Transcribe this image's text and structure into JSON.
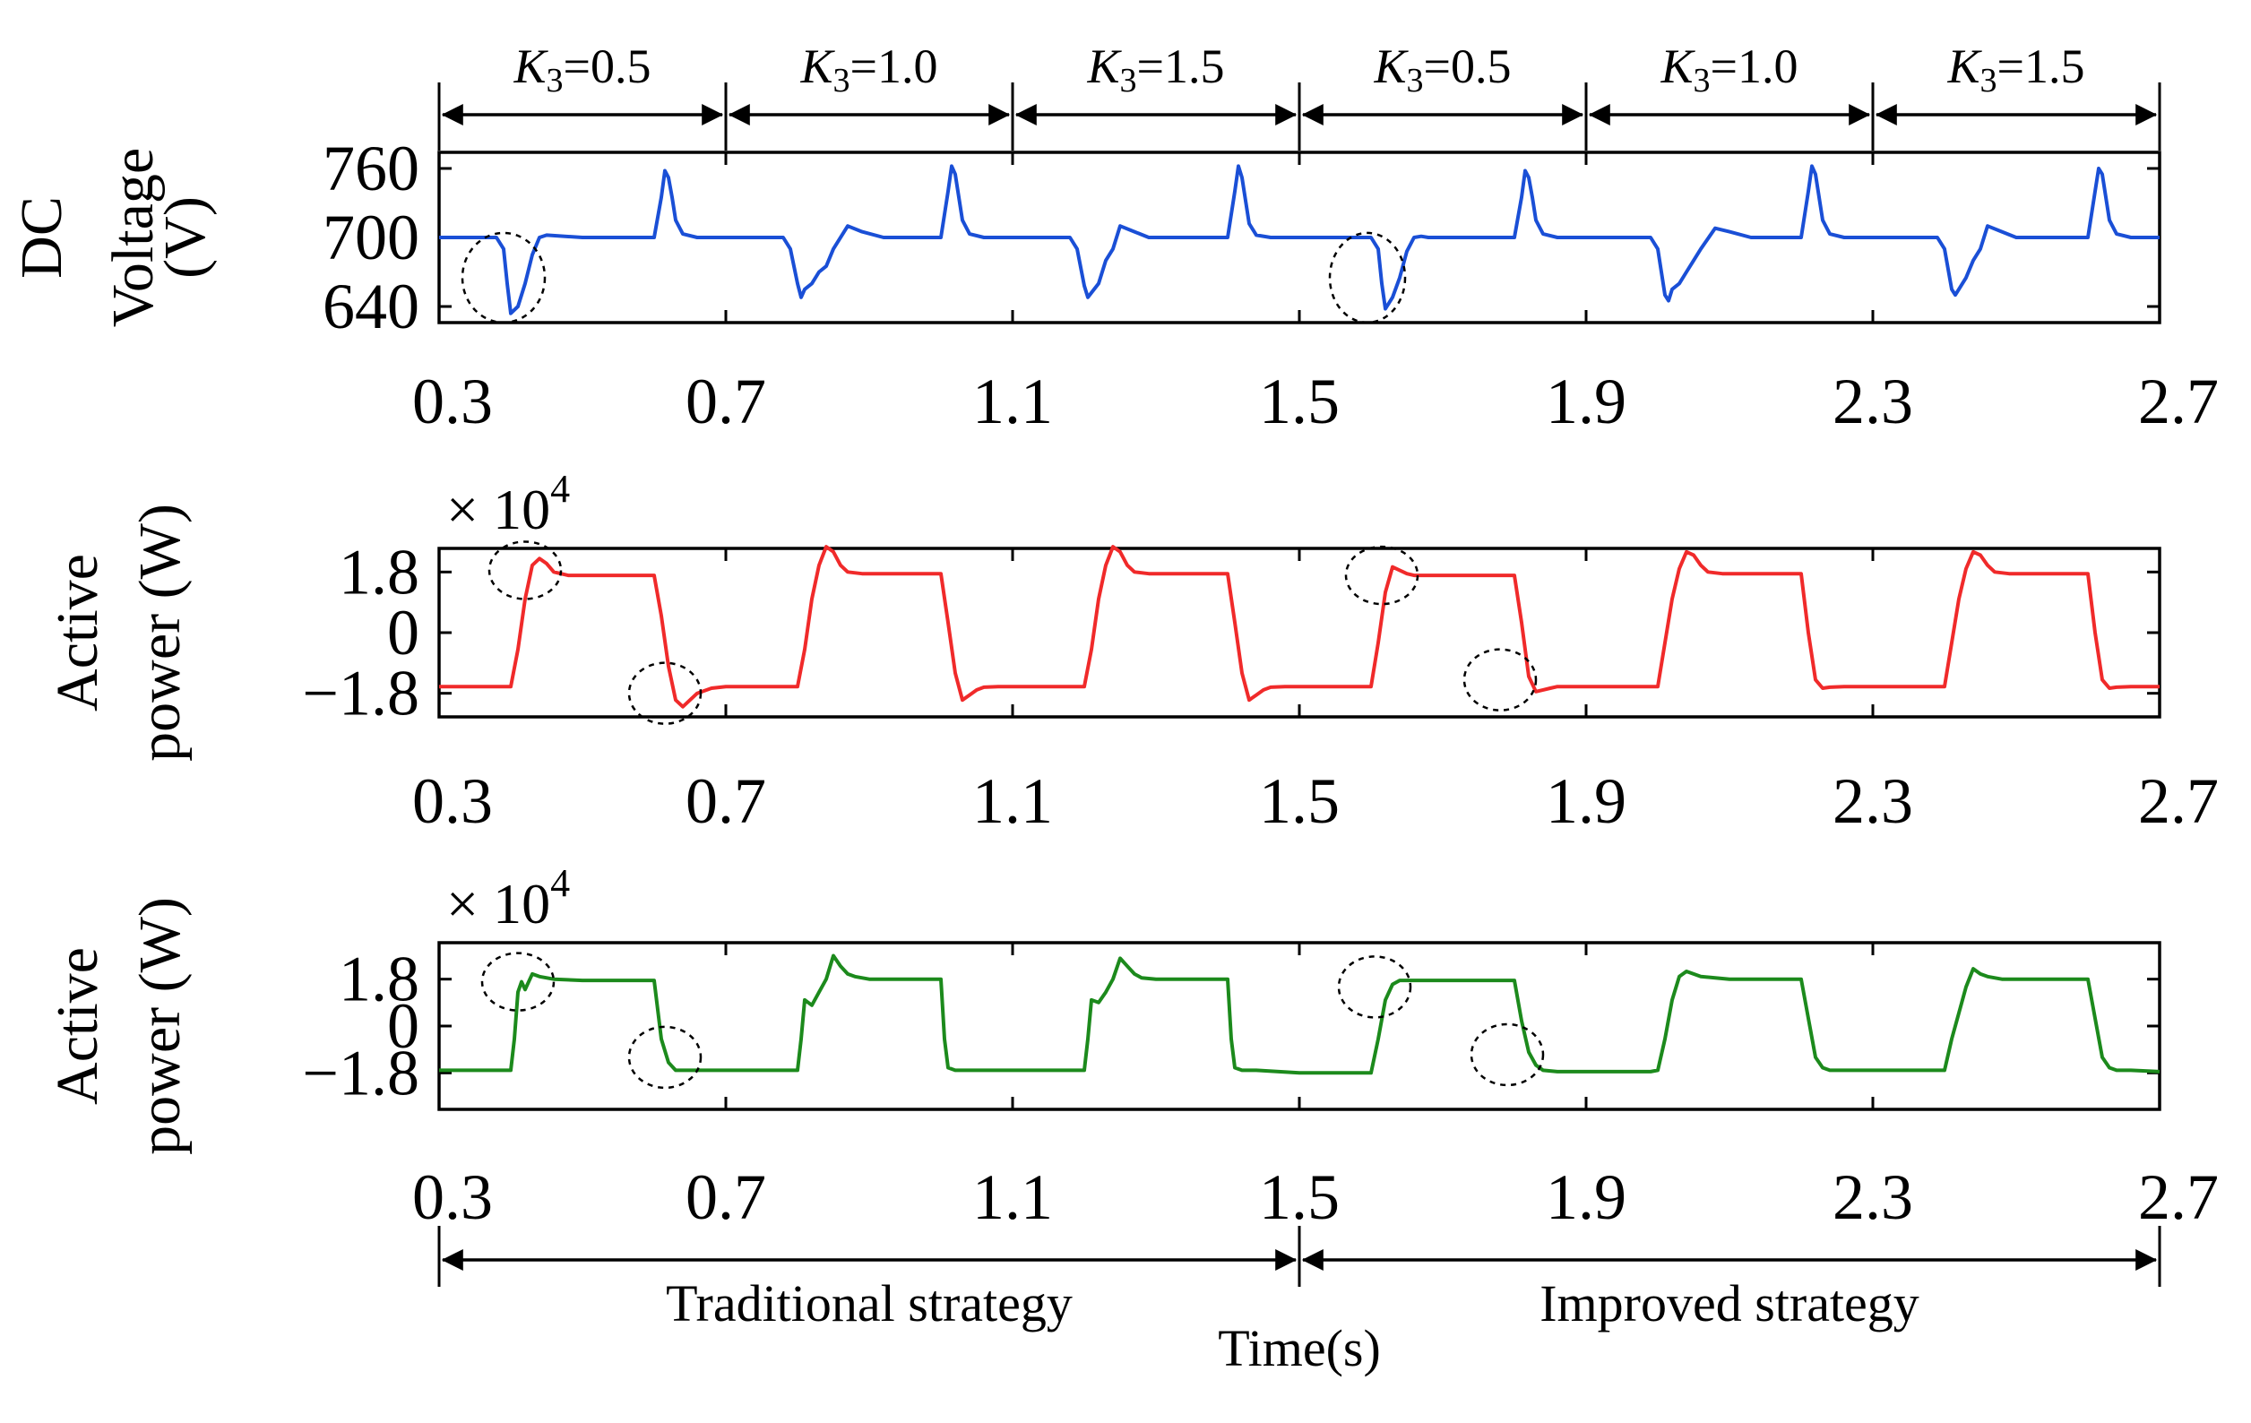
{
  "figure": {
    "k3_segments": [
      {
        "label_var": "K",
        "label_sub": "3",
        "label_value": "=0.5",
        "from": 0.3,
        "to": 0.7
      },
      {
        "label_var": "K",
        "label_sub": "3",
        "label_value": "=1.0",
        "from": 0.7,
        "to": 1.1
      },
      {
        "label_var": "K",
        "label_sub": "3",
        "label_value": "=1.5",
        "from": 1.1,
        "to": 1.5
      },
      {
        "label_var": "K",
        "label_sub": "3",
        "label_value": "=0.5",
        "from": 1.5,
        "to": 1.9
      },
      {
        "label_var": "K",
        "label_sub": "3",
        "label_value": "=1.0",
        "from": 1.9,
        "to": 2.3
      },
      {
        "label_var": "K",
        "label_sub": "3",
        "label_value": "=1.5",
        "from": 2.3,
        "to": 2.7
      }
    ],
    "strategies": [
      {
        "label": "Traditional strategy",
        "from": 0.3,
        "to": 1.5
      },
      {
        "label": "Improved strategy",
        "from": 1.5,
        "to": 2.7
      }
    ],
    "xlabel": "Time(s)"
  },
  "chart_data": [
    {
      "type": "line",
      "ylabel_lines": [
        "DC",
        "Voltage",
        "(V)"
      ],
      "xlim": [
        0.3,
        2.7
      ],
      "ylim": [
        626,
        774
      ],
      "x_ticks": [
        0.3,
        0.7,
        1.1,
        1.5,
        1.9,
        2.3,
        2.7
      ],
      "x_tick_labels": [
        "0.3",
        "0.7",
        "1.1",
        "1.5",
        "1.9",
        "2.3",
        "2.7"
      ],
      "y_ticks": [
        640,
        700,
        760
      ],
      "y_tick_labels": [
        "640",
        "700",
        "760"
      ],
      "multiplier": null,
      "color": "#1a4fd6",
      "series": [
        {
          "x": [
            0.3,
            0.38,
            0.39,
            0.395,
            0.4,
            0.41,
            0.42,
            0.43,
            0.44,
            0.45,
            0.5,
            0.6,
            0.61,
            0.615,
            0.62,
            0.625,
            0.63,
            0.64,
            0.66,
            0.69,
            0.78,
            0.79,
            0.8,
            0.805,
            0.81,
            0.82,
            0.83,
            0.84,
            0.85,
            0.87,
            0.89,
            0.92,
            0.94,
            1.0,
            1.01,
            1.015,
            1.02,
            1.025,
            1.03,
            1.04,
            1.06,
            1.09,
            1.18,
            1.19,
            1.2,
            1.205,
            1.21,
            1.22,
            1.23,
            1.24,
            1.25,
            1.27,
            1.29,
            1.32,
            1.34,
            1.4,
            1.41,
            1.415,
            1.42,
            1.425,
            1.43,
            1.44,
            1.46,
            1.49,
            1.6,
            1.61,
            1.615,
            1.62,
            1.63,
            1.64,
            1.65,
            1.66,
            1.67,
            1.68,
            1.7,
            1.8,
            1.81,
            1.815,
            1.82,
            1.825,
            1.83,
            1.84,
            1.86,
            1.89,
            1.99,
            2.0,
            2.01,
            2.015,
            2.02,
            2.03,
            2.04,
            2.05,
            2.06,
            2.08,
            2.1,
            2.13,
            2.15,
            2.2,
            2.21,
            2.215,
            2.22,
            2.225,
            2.23,
            2.24,
            2.26,
            2.29,
            2.39,
            2.4,
            2.41,
            2.415,
            2.42,
            2.43,
            2.44,
            2.45,
            2.46,
            2.48,
            2.5,
            2.53,
            2.55,
            2.6,
            2.61,
            2.615,
            2.62,
            2.625,
            2.63,
            2.64,
            2.66,
            2.7
          ],
          "y": [
            700,
            700,
            690,
            660,
            634,
            640,
            660,
            685,
            700,
            702,
            700,
            700,
            735,
            758,
            752,
            735,
            715,
            703,
            700,
            700,
            700,
            690,
            660,
            648,
            655,
            660,
            670,
            675,
            690,
            710,
            705,
            700,
            700,
            700,
            740,
            762,
            755,
            735,
            715,
            703,
            700,
            700,
            700,
            690,
            658,
            648,
            652,
            660,
            680,
            690,
            710,
            705,
            700,
            700,
            700,
            700,
            740,
            762,
            752,
            732,
            712,
            702,
            700,
            700,
            700,
            690,
            660,
            638,
            648,
            665,
            688,
            700,
            701,
            700,
            700,
            700,
            735,
            758,
            752,
            735,
            715,
            703,
            700,
            700,
            700,
            690,
            650,
            645,
            655,
            660,
            670,
            680,
            690,
            708,
            705,
            700,
            700,
            700,
            740,
            762,
            755,
            735,
            715,
            703,
            700,
            700,
            700,
            690,
            655,
            650,
            655,
            665,
            680,
            690,
            710,
            705,
            700,
            700,
            700,
            700,
            740,
            760,
            755,
            735,
            715,
            703,
            700,
            700
          ]
        }
      ]
    },
    {
      "type": "line",
      "ylabel_lines": [
        "Active",
        "power (W)"
      ],
      "xlim": [
        0.3,
        2.7
      ],
      "ylim": [
        -2.5,
        2.5
      ],
      "x_ticks": [
        0.3,
        0.7,
        1.1,
        1.5,
        1.9,
        2.3,
        2.7
      ],
      "x_tick_labels": [
        "0.3",
        "0.7",
        "1.1",
        "1.5",
        "1.9",
        "2.3",
        "2.7"
      ],
      "y_ticks": [
        -1.8,
        0,
        1.8
      ],
      "y_tick_labels": [
        "−1.8",
        "0",
        "1.8"
      ],
      "multiplier": {
        "base": "× 10",
        "exponent": "4"
      },
      "color": "#f02a2a",
      "series": [
        {
          "x": [
            0.3,
            0.4,
            0.41,
            0.42,
            0.43,
            0.44,
            0.45,
            0.46,
            0.48,
            0.5,
            0.6,
            0.61,
            0.62,
            0.63,
            0.64,
            0.65,
            0.66,
            0.68,
            0.7,
            0.8,
            0.81,
            0.82,
            0.83,
            0.84,
            0.85,
            0.86,
            0.87,
            0.89,
            0.9,
            1.0,
            1.01,
            1.02,
            1.03,
            1.04,
            1.05,
            1.06,
            1.08,
            1.1,
            1.2,
            1.21,
            1.22,
            1.23,
            1.24,
            1.25,
            1.26,
            1.27,
            1.29,
            1.3,
            1.4,
            1.41,
            1.42,
            1.43,
            1.44,
            1.45,
            1.46,
            1.48,
            1.5,
            1.6,
            1.61,
            1.62,
            1.63,
            1.64,
            1.65,
            1.66,
            1.68,
            1.7,
            1.8,
            1.81,
            1.82,
            1.83,
            1.84,
            1.85,
            1.86,
            1.88,
            1.9,
            2.0,
            2.01,
            2.02,
            2.03,
            2.04,
            2.05,
            2.06,
            2.07,
            2.09,
            2.1,
            2.2,
            2.21,
            2.22,
            2.23,
            2.24,
            2.26,
            2.3,
            2.4,
            2.41,
            2.42,
            2.43,
            2.44,
            2.45,
            2.46,
            2.47,
            2.49,
            2.5,
            2.6,
            2.61,
            2.62,
            2.63,
            2.64,
            2.66,
            2.7
          ],
          "y": [
            -1.6,
            -1.6,
            -0.5,
            1.0,
            2.0,
            2.2,
            2.05,
            1.8,
            1.7,
            1.7,
            1.7,
            0.5,
            -1.0,
            -2.0,
            -2.2,
            -2.0,
            -1.8,
            -1.65,
            -1.6,
            -1.6,
            -0.5,
            1.0,
            2.0,
            2.55,
            2.4,
            2.0,
            1.8,
            1.75,
            1.75,
            1.75,
            0.3,
            -1.2,
            -2.0,
            -1.85,
            -1.7,
            -1.62,
            -1.6,
            -1.6,
            -1.6,
            -0.5,
            1.0,
            2.0,
            2.55,
            2.4,
            2.0,
            1.8,
            1.75,
            1.75,
            1.75,
            0.3,
            -1.2,
            -2.0,
            -1.85,
            -1.7,
            -1.62,
            -1.6,
            -1.6,
            -1.6,
            -0.3,
            1.2,
            1.95,
            1.85,
            1.75,
            1.7,
            1.7,
            1.7,
            1.7,
            0.3,
            -1.3,
            -1.75,
            -1.7,
            -1.65,
            -1.6,
            -1.6,
            -1.6,
            -1.6,
            -0.3,
            1.0,
            1.9,
            2.4,
            2.3,
            2.0,
            1.8,
            1.75,
            1.75,
            1.75,
            0.0,
            -1.4,
            -1.65,
            -1.62,
            -1.6,
            -1.6,
            -1.6,
            -0.3,
            1.0,
            1.9,
            2.4,
            2.3,
            2.0,
            1.8,
            1.75,
            1.75,
            1.75,
            0.0,
            -1.4,
            -1.65,
            -1.62,
            -1.6,
            -1.6
          ]
        }
      ]
    },
    {
      "type": "line",
      "ylabel_lines": [
        "Active",
        "power (W)"
      ],
      "xlim": [
        0.3,
        2.7
      ],
      "ylim": [
        -3.2,
        3.2
      ],
      "x_ticks": [
        0.3,
        0.7,
        1.1,
        1.5,
        1.9,
        2.3,
        2.7
      ],
      "x_tick_labels": [
        "0.3",
        "0.7",
        "1.1",
        "1.5",
        "1.9",
        "2.3",
        "2.7"
      ],
      "y_ticks": [
        -1.8,
        0,
        1.8
      ],
      "y_tick_labels": [
        "−1.8",
        "0",
        "1.8"
      ],
      "multiplier": {
        "base": "× 10",
        "exponent": "4"
      },
      "color": "#1c8a1c",
      "series": [
        {
          "x": [
            0.3,
            0.4,
            0.405,
            0.41,
            0.415,
            0.42,
            0.425,
            0.43,
            0.44,
            0.46,
            0.5,
            0.6,
            0.61,
            0.62,
            0.63,
            0.64,
            0.66,
            0.7,
            0.79,
            0.8,
            0.805,
            0.81,
            0.82,
            0.83,
            0.84,
            0.85,
            0.86,
            0.87,
            0.88,
            0.9,
            1.0,
            1.005,
            1.01,
            1.02,
            1.04,
            1.1,
            1.19,
            1.2,
            1.205,
            1.21,
            1.22,
            1.23,
            1.24,
            1.25,
            1.26,
            1.27,
            1.28,
            1.3,
            1.4,
            1.405,
            1.41,
            1.42,
            1.44,
            1.5,
            1.6,
            1.61,
            1.62,
            1.63,
            1.64,
            1.66,
            1.7,
            1.8,
            1.81,
            1.82,
            1.83,
            1.84,
            1.86,
            1.9,
            1.99,
            2.0,
            2.01,
            2.02,
            2.03,
            2.04,
            2.05,
            2.06,
            2.08,
            2.1,
            2.2,
            2.21,
            2.22,
            2.23,
            2.24,
            2.26,
            2.3,
            2.39,
            2.4,
            2.41,
            2.42,
            2.43,
            2.44,
            2.45,
            2.46,
            2.48,
            2.5,
            2.6,
            2.61,
            2.62,
            2.63,
            2.64,
            2.66,
            2.7
          ],
          "y": [
            -1.7,
            -1.7,
            -0.5,
            1.3,
            1.7,
            1.4,
            1.7,
            2.0,
            1.9,
            1.8,
            1.75,
            1.75,
            -0.5,
            -1.4,
            -1.7,
            -1.7,
            -1.7,
            -1.7,
            -1.7,
            -1.7,
            -0.5,
            1.0,
            0.8,
            1.3,
            1.8,
            2.7,
            2.3,
            2.0,
            1.9,
            1.8,
            1.8,
            -0.5,
            -1.6,
            -1.7,
            -1.7,
            -1.7,
            -1.7,
            -1.7,
            -0.5,
            1.0,
            0.9,
            1.3,
            1.8,
            2.6,
            2.3,
            2.0,
            1.85,
            1.8,
            1.8,
            -0.5,
            -1.6,
            -1.7,
            -1.7,
            -1.8,
            -1.8,
            -0.5,
            1.0,
            1.6,
            1.75,
            1.75,
            1.75,
            1.75,
            0.2,
            -1.0,
            -1.5,
            -1.7,
            -1.75,
            -1.75,
            -1.75,
            -1.7,
            -0.5,
            1.0,
            1.9,
            2.1,
            2.0,
            1.9,
            1.85,
            1.8,
            1.8,
            0.3,
            -1.2,
            -1.6,
            -1.7,
            -1.7,
            -1.7,
            -1.7,
            -1.7,
            -0.5,
            0.5,
            1.5,
            2.2,
            2.0,
            1.9,
            1.8,
            1.8,
            1.8,
            0.3,
            -1.2,
            -1.6,
            -1.7,
            -1.7,
            -1.75
          ]
        }
      ]
    }
  ]
}
